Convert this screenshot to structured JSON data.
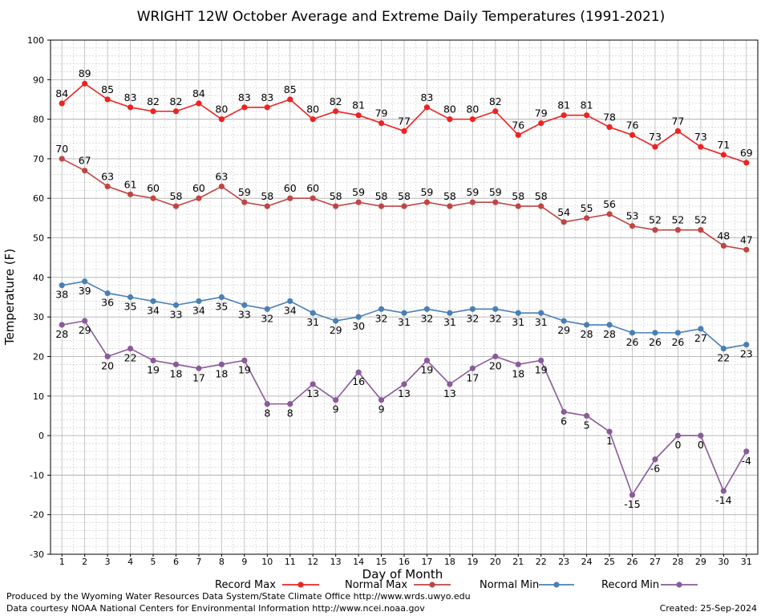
{
  "chart_data": {
    "type": "line",
    "title": "WRIGHT 12W October Average and Extreme Daily Temperatures (1991-2021)",
    "xlabel": "Day of Month",
    "ylabel": "Temperature (F)",
    "ylim": [
      -30,
      100
    ],
    "xlim": [
      0.5,
      31.5
    ],
    "y_ticks": [
      100,
      90,
      80,
      70,
      60,
      50,
      40,
      30,
      20,
      10,
      0,
      -10,
      -20,
      -30
    ],
    "x": [
      1,
      2,
      3,
      4,
      5,
      6,
      7,
      8,
      9,
      10,
      11,
      12,
      13,
      14,
      15,
      16,
      17,
      18,
      19,
      20,
      21,
      22,
      23,
      24,
      25,
      26,
      27,
      28,
      29,
      30,
      31
    ],
    "grid": true,
    "legend_position": "bottom",
    "series": [
      {
        "name": "Record Max",
        "color": "#ee2222",
        "values": [
          84,
          89,
          85,
          83,
          82,
          82,
          84,
          80,
          83,
          83,
          85,
          80,
          82,
          81,
          79,
          77,
          83,
          80,
          80,
          82,
          76,
          79,
          81,
          81,
          78,
          76,
          73,
          77,
          73,
          71,
          69
        ]
      },
      {
        "name": "Normal Max",
        "color": "#c04545",
        "values": [
          70,
          67,
          63,
          61,
          60,
          58,
          60,
          63,
          59,
          58,
          60,
          60,
          58,
          59,
          58,
          58,
          59,
          58,
          59,
          59,
          58,
          58,
          54,
          55,
          56,
          53,
          52,
          52,
          52,
          48,
          47
        ]
      },
      {
        "name": "Normal Min",
        "color": "#4a7fb5",
        "values": [
          38,
          39,
          36,
          35,
          34,
          33,
          34,
          35,
          33,
          32,
          34,
          31,
          29,
          30,
          32,
          31,
          32,
          31,
          32,
          32,
          31,
          31,
          29,
          28,
          28,
          26,
          26,
          26,
          27,
          22,
          23
        ]
      },
      {
        "name": "Record Min",
        "color": "#8a5a9a",
        "values": [
          28,
          29,
          20,
          22,
          19,
          18,
          17,
          18,
          19,
          8,
          8,
          13,
          9,
          16,
          9,
          13,
          19,
          13,
          17,
          20,
          18,
          19,
          6,
          5,
          1,
          -15,
          -6,
          0,
          0,
          -14,
          -4
        ]
      }
    ],
    "footer_left": [
      "Produced by the Wyoming Water Resources Data System/State Climate Office http://www.wrds.uwyo.edu",
      "Data courtesy NOAA National Centers for Environmental Information http://www.ncei.noaa.gov"
    ],
    "footer_right": "Created:  25-Sep-2024"
  }
}
